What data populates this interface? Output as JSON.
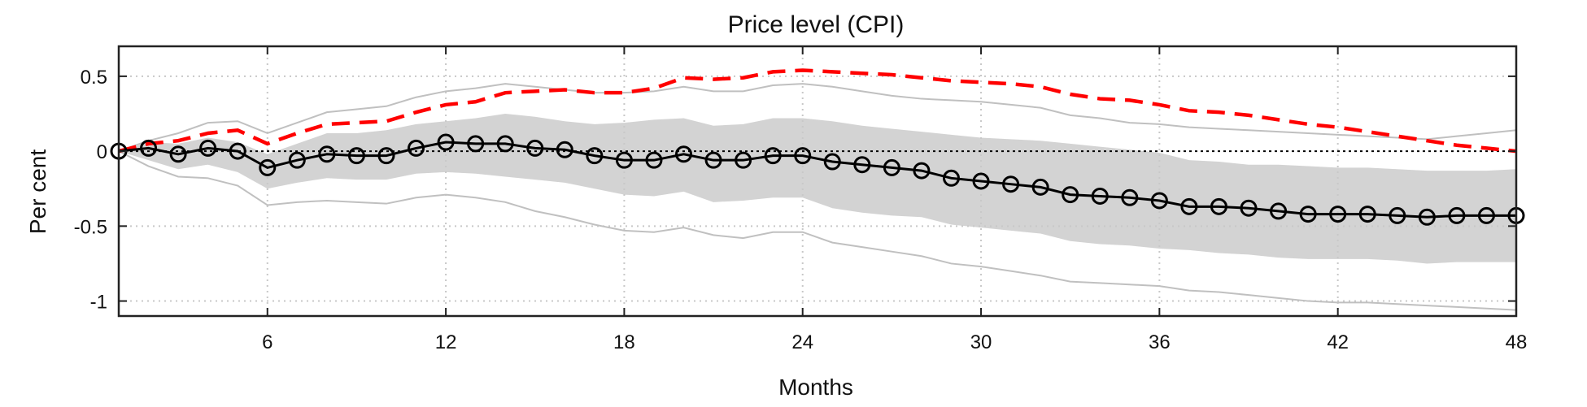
{
  "chart_data": {
    "type": "line",
    "title": "Price level (CPI)",
    "xlabel": "Months",
    "ylabel": "Per cent",
    "xlim": [
      1,
      48
    ],
    "ylim": [
      -1.1,
      0.7
    ],
    "xticks": [
      6,
      12,
      18,
      24,
      30,
      36,
      42,
      48
    ],
    "yticks": [
      0.5,
      0,
      -0.5,
      -1
    ],
    "ytick_labels": [
      "0.5",
      "0",
      "-0.5",
      "-1"
    ],
    "grid": true,
    "colors": {
      "median_line": "#000000",
      "comparison_line": "#ff0000",
      "band_fill": "#d3d3d3",
      "outer_lines": "#c0c0c0",
      "zero_line": "#000000"
    },
    "x": [
      1,
      2,
      3,
      4,
      5,
      6,
      7,
      8,
      9,
      10,
      11,
      12,
      13,
      14,
      15,
      16,
      17,
      18,
      19,
      20,
      21,
      22,
      23,
      24,
      25,
      26,
      27,
      28,
      29,
      30,
      31,
      32,
      33,
      34,
      35,
      36,
      37,
      38,
      39,
      40,
      41,
      42,
      43,
      44,
      45,
      46,
      47,
      48
    ],
    "median": [
      0,
      0.02,
      -0.02,
      0.02,
      0,
      -0.11,
      -0.06,
      -0.02,
      -0.03,
      -0.03,
      0.02,
      0.06,
      0.05,
      0.05,
      0.02,
      0.01,
      -0.03,
      -0.06,
      -0.06,
      -0.02,
      -0.06,
      -0.06,
      -0.03,
      -0.03,
      -0.07,
      -0.09,
      -0.11,
      -0.13,
      -0.18,
      -0.2,
      -0.22,
      -0.24,
      -0.29,
      -0.3,
      -0.31,
      -0.33,
      -0.37,
      -0.37,
      -0.38,
      -0.4,
      -0.42,
      -0.42,
      -0.42,
      -0.43,
      -0.44,
      -0.43,
      -0.43,
      -0.43
    ],
    "comparison": [
      0,
      0.05,
      0.07,
      0.12,
      0.14,
      0.05,
      0.12,
      0.18,
      0.19,
      0.2,
      0.26,
      0.31,
      0.33,
      0.39,
      0.4,
      0.41,
      0.39,
      0.39,
      0.42,
      0.49,
      0.48,
      0.49,
      0.53,
      0.54,
      0.53,
      0.52,
      0.51,
      0.49,
      0.47,
      0.46,
      0.45,
      0.43,
      0.38,
      0.35,
      0.34,
      0.31,
      0.27,
      0.26,
      0.24,
      0.21,
      0.18,
      0.16,
      0.13,
      0.1,
      0.07,
      0.04,
      0.02,
      0
    ],
    "band_upper": [
      0,
      0.06,
      0.05,
      0.09,
      0.06,
      -0.02,
      0.05,
      0.12,
      0.12,
      0.14,
      0.18,
      0.2,
      0.22,
      0.25,
      0.23,
      0.2,
      0.18,
      0.19,
      0.21,
      0.22,
      0.17,
      0.18,
      0.22,
      0.22,
      0.2,
      0.17,
      0.15,
      0.13,
      0.11,
      0.09,
      0.08,
      0.07,
      0.05,
      0.03,
      0.01,
      -0.01,
      -0.06,
      -0.07,
      -0.09,
      -0.09,
      -0.1,
      -0.11,
      -0.11,
      -0.12,
      -0.13,
      -0.13,
      -0.13,
      -0.12
    ],
    "band_lower": [
      0,
      -0.06,
      -0.12,
      -0.09,
      -0.14,
      -0.25,
      -0.21,
      -0.18,
      -0.19,
      -0.19,
      -0.15,
      -0.14,
      -0.15,
      -0.17,
      -0.19,
      -0.21,
      -0.25,
      -0.29,
      -0.3,
      -0.27,
      -0.34,
      -0.33,
      -0.31,
      -0.31,
      -0.38,
      -0.41,
      -0.43,
      -0.44,
      -0.49,
      -0.51,
      -0.53,
      -0.55,
      -0.6,
      -0.62,
      -0.63,
      -0.65,
      -0.66,
      -0.68,
      -0.69,
      -0.71,
      -0.72,
      -0.72,
      -0.72,
      -0.73,
      -0.75,
      -0.74,
      -0.74,
      -0.74
    ],
    "outer_upper": [
      0,
      0.07,
      0.12,
      0.19,
      0.2,
      0.12,
      0.19,
      0.26,
      0.28,
      0.3,
      0.36,
      0.4,
      0.42,
      0.45,
      0.43,
      0.41,
      0.39,
      0.39,
      0.4,
      0.43,
      0.4,
      0.4,
      0.44,
      0.45,
      0.43,
      0.4,
      0.37,
      0.35,
      0.34,
      0.33,
      0.31,
      0.29,
      0.24,
      0.22,
      0.19,
      0.18,
      0.16,
      0.15,
      0.14,
      0.13,
      0.12,
      0.11,
      0.1,
      0.09,
      0.08,
      0.1,
      0.12,
      0.14
    ],
    "outer_lower": [
      0,
      -0.1,
      -0.17,
      -0.18,
      -0.23,
      -0.36,
      -0.34,
      -0.33,
      -0.34,
      -0.35,
      -0.31,
      -0.29,
      -0.31,
      -0.34,
      -0.4,
      -0.44,
      -0.49,
      -0.53,
      -0.54,
      -0.51,
      -0.56,
      -0.58,
      -0.54,
      -0.54,
      -0.61,
      -0.64,
      -0.67,
      -0.7,
      -0.75,
      -0.77,
      -0.8,
      -0.83,
      -0.87,
      -0.88,
      -0.89,
      -0.9,
      -0.93,
      -0.94,
      -0.96,
      -0.98,
      -1,
      -1.01,
      -1.01,
      -1.02,
      -1.03,
      -1.04,
      -1.05,
      -1.06
    ]
  }
}
